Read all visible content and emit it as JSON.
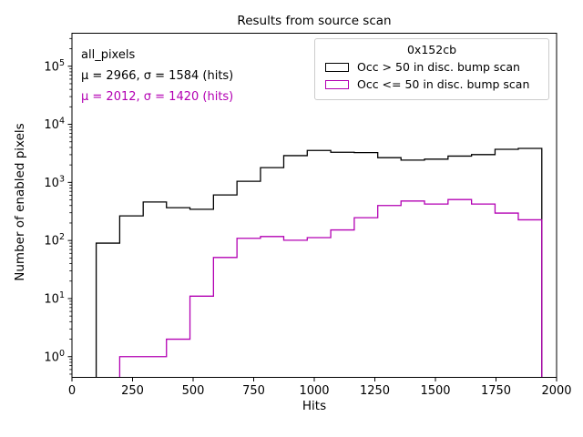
{
  "chart_data": {
    "type": "histogram-step",
    "title": "Results from source scan",
    "xlabel": "Hits",
    "ylabel": "Number of enabled pixels",
    "xlim": [
      0,
      2000
    ],
    "xticks": [
      0,
      250,
      500,
      750,
      1000,
      1250,
      1500,
      1750,
      2000
    ],
    "yscale": "log",
    "ylim": [
      0.44,
      370000
    ],
    "ytick_exponents": [
      0,
      1,
      2,
      3,
      4,
      5
    ],
    "grid": false,
    "bin_edges": [
      100,
      197,
      294,
      390,
      487,
      584,
      681,
      778,
      874,
      971,
      1068,
      1165,
      1262,
      1358,
      1455,
      1552,
      1649,
      1746,
      1842,
      1939
    ],
    "series": [
      {
        "name": "Occ > 50 in disc. bump scan",
        "color": "#000000",
        "values": [
          90,
          265,
          460,
          367,
          345,
          608,
          1045,
          1795,
          2890,
          3550,
          3300,
          3260,
          2667,
          2422,
          2512,
          2840,
          3010,
          3715,
          3850
        ]
      },
      {
        "name": "Occ <= 50 in disc. bump scan",
        "color": "#b300b3",
        "values": [
          0,
          1,
          1,
          2,
          11,
          51,
          109,
          117,
          101,
          112,
          152,
          247,
          400,
          478,
          424,
          507,
          424,
          296,
          227
        ]
      }
    ],
    "legend": {
      "title": "0x152cb",
      "position": "upper right",
      "entries": [
        "Occ > 50 in disc. bump scan",
        "Occ <= 50 in disc. bump scan"
      ]
    },
    "annotation": {
      "line1": "all_pixels",
      "line2": "μ = 2966, σ = 1584 (hits)",
      "line3": "μ = 2012, σ = 1420 (hits)"
    },
    "colors": {
      "axes": "#000000",
      "magenta": "#b300b3",
      "legend_border": "#cccccc"
    }
  }
}
